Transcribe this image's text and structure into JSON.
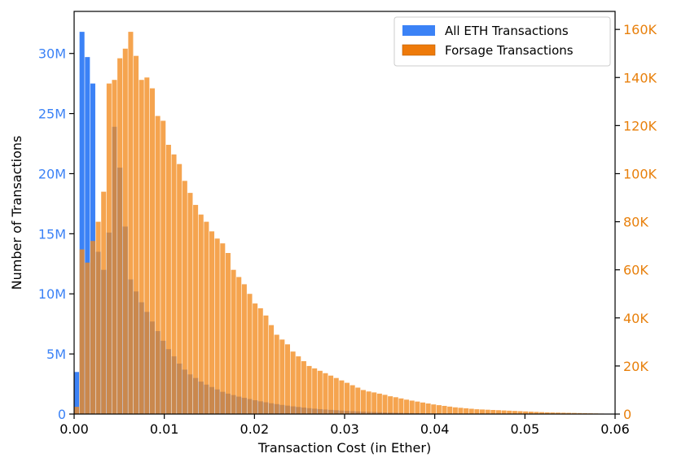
{
  "chart_data": {
    "type": "bar",
    "title": "",
    "xlabel": "Transaction Cost (in Ether)",
    "ylabel_left": "Number of Transactions",
    "ylabel_right": "",
    "xlim": [
      0,
      0.06
    ],
    "ylim_left": [
      0,
      33500000
    ],
    "ylim_right": [
      0,
      167500
    ],
    "bin_width": 0.0006,
    "x_ticks": [
      0,
      0.01,
      0.02,
      0.03,
      0.04,
      0.05,
      0.06
    ],
    "x_tick_labels": [
      "0.00",
      "0.01",
      "0.02",
      "0.03",
      "0.04",
      "0.05",
      "0.06"
    ],
    "y_left_ticks": [
      0,
      5000000,
      10000000,
      15000000,
      20000000,
      25000000,
      30000000
    ],
    "y_left_tick_labels": [
      "0",
      "5M",
      "10M",
      "15M",
      "20M",
      "25M",
      "30M"
    ],
    "y_right_ticks": [
      0,
      20000,
      40000,
      60000,
      80000,
      100000,
      120000,
      140000,
      160000
    ],
    "y_right_tick_labels": [
      "0",
      "20K",
      "40K",
      "60K",
      "80K",
      "100K",
      "120K",
      "140K",
      "160K"
    ],
    "grid": false,
    "legend_position": "top-right",
    "series": [
      {
        "name": "All ETH Transactions",
        "axis": "left",
        "color": "#3b82f6",
        "values": [
          3500000,
          31800000,
          29700000,
          27500000,
          13500000,
          12000000,
          15100000,
          23900000,
          20500000,
          15600000,
          11200000,
          10200000,
          9300000,
          8500000,
          7700000,
          6900000,
          6100000,
          5400000,
          4800000,
          4200000,
          3700000,
          3300000,
          3000000,
          2700000,
          2450000,
          2250000,
          2050000,
          1850000,
          1700000,
          1580000,
          1450000,
          1350000,
          1250000,
          1150000,
          1060000,
          980000,
          900000,
          830000,
          760000,
          700000,
          640000,
          590000,
          540000,
          490000,
          450000,
          410000,
          380000,
          350000,
          320000,
          290000,
          265000,
          240000,
          220000,
          200000,
          180000,
          165000,
          150000,
          135000,
          122000,
          110000,
          100000,
          90000,
          82000,
          75000,
          68000,
          62000,
          56000,
          51000,
          46000,
          42000,
          38000,
          34000,
          31000,
          28000,
          25000,
          23000,
          21000,
          19000,
          17000,
          15000,
          14000,
          13000,
          12000,
          11000,
          10000,
          9000,
          8000,
          7500,
          7000,
          6500,
          6000,
          5500,
          5000,
          4500,
          4000,
          3500,
          3000,
          2500,
          2000,
          1500
        ]
      },
      {
        "name": "Forsage Transactions",
        "axis": "right",
        "color": "#f28a1e",
        "values": [
          3000,
          68500,
          63000,
          72000,
          80000,
          92500,
          137500,
          139000,
          148000,
          152000,
          159000,
          149000,
          139000,
          140000,
          135500,
          124000,
          122000,
          112000,
          108000,
          104000,
          97000,
          92000,
          87000,
          83000,
          80000,
          76000,
          73000,
          71000,
          67000,
          60000,
          57000,
          54000,
          50000,
          46000,
          44000,
          41000,
          37000,
          33000,
          31000,
          29000,
          26000,
          24000,
          22000,
          20000,
          19000,
          18000,
          17000,
          16000,
          15000,
          14000,
          13000,
          12000,
          11000,
          10000,
          9400,
          9000,
          8500,
          8000,
          7400,
          7000,
          6500,
          6000,
          5600,
          5200,
          4800,
          4400,
          4000,
          3700,
          3400,
          3100,
          2800,
          2600,
          2400,
          2200,
          2000,
          1900,
          1800,
          1700,
          1600,
          1500,
          1400,
          1300,
          1200,
          1100,
          1000,
          900,
          800,
          700,
          650,
          600,
          550,
          500,
          450,
          400,
          350,
          300,
          250,
          200,
          150,
          100
        ]
      }
    ]
  }
}
